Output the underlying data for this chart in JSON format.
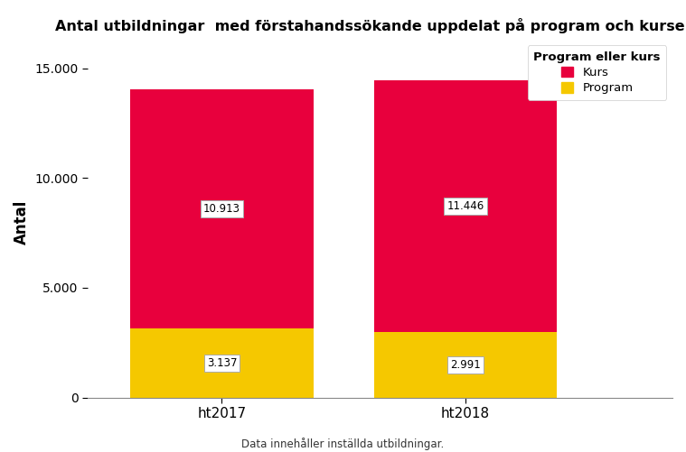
{
  "title": "Antal utbildningar  med förstahandssökande uppdelat på program och kurser",
  "ylabel": "Antal",
  "categories": [
    "ht2017",
    "ht2018"
  ],
  "program_values": [
    3137,
    2991
  ],
  "kurs_values": [
    10913,
    11446
  ],
  "program_color": "#F5C800",
  "kurs_color": "#E8003D",
  "legend_title": "Program eller kurs",
  "program_labels": [
    "3.137",
    "2.991"
  ],
  "kurs_labels": [
    "10.913",
    "11.446"
  ],
  "ylim": [
    0,
    16000
  ],
  "yticks": [
    0,
    5000,
    10000,
    15000
  ],
  "ytick_labels": [
    "0",
    "5.000",
    "10.000",
    "15.000"
  ],
  "footnote": "Data innehåller inställda utbildningar.",
  "background_color": "#FFFFFF",
  "plot_background": "#FFFFFF"
}
